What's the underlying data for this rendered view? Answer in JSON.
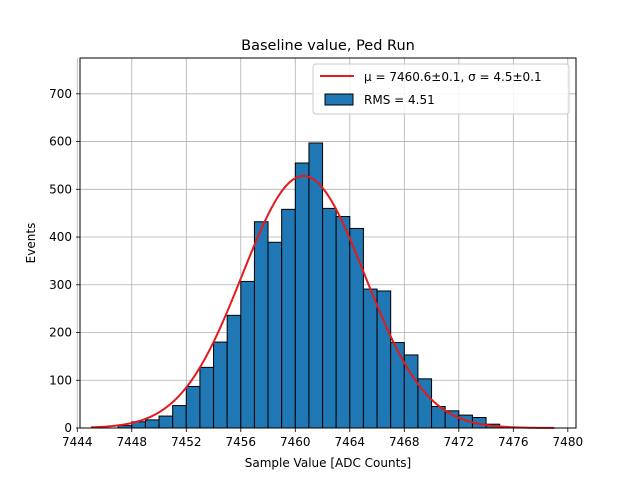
{
  "chart_data": {
    "type": "bar",
    "title": "Baseline value, Ped Run",
    "xlabel": "Sample Value [ADC Counts]",
    "ylabel": "Events",
    "xlim": [
      7444.2,
      7480.6
    ],
    "ylim": [
      0,
      775
    ],
    "xticks": [
      7444,
      7448,
      7452,
      7456,
      7460,
      7464,
      7468,
      7472,
      7476,
      7480
    ],
    "yticks": [
      0,
      100,
      200,
      300,
      400,
      500,
      600,
      700
    ],
    "grid": true,
    "legend_position": "top-right",
    "bin_width": 1,
    "histogram": {
      "name": "RMS = 4.51",
      "color": "#1f77b4",
      "edge_color": "#000000",
      "bin_left_edges": [
        7447,
        7448,
        7449,
        7450,
        7451,
        7452,
        7453,
        7454,
        7455,
        7456,
        7457,
        7458,
        7459,
        7460,
        7461,
        7462,
        7463,
        7464,
        7465,
        7466,
        7467,
        7468,
        7469,
        7470,
        7471,
        7472,
        7473,
        7474
      ],
      "counts": [
        5,
        13,
        17,
        25,
        47,
        87,
        127,
        180,
        236,
        307,
        432,
        389,
        458,
        555,
        597,
        460,
        443,
        418,
        291,
        287,
        179,
        153,
        103,
        45,
        36,
        27,
        22,
        8
      ]
    },
    "fit": {
      "name": "μ = 7460.6±0.1, σ = 4.5±0.1",
      "color": "#e41a1c",
      "mu": 7460.6,
      "sigma": 4.5,
      "amplitude": 528,
      "x_range": [
        7445,
        7479
      ]
    }
  }
}
